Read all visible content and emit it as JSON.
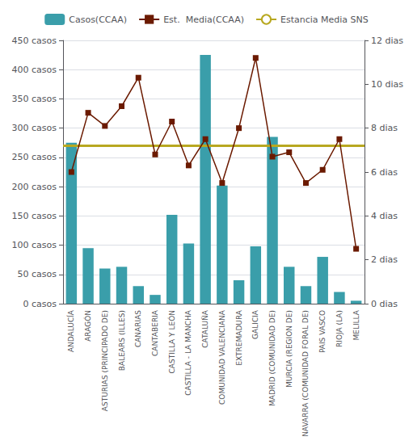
{
  "chart_data": {
    "type": "bar",
    "categories": [
      "ANDALUCÍA",
      "ARAGÓN",
      "ASTURIAS (PRINCIPADO DE)",
      "BALEARS (ILLES)",
      "CANARIAS",
      "CANTABERIA",
      "CASTILLA Y LEÓN",
      "CASTILLA - LA MANCHA",
      "CATALUÑA",
      "COMUNIDAD VALENCIANA",
      "EXTREMADURA",
      "GALICIA",
      "MADRID (COMUNIDAD DE)",
      "MURCIA (REGION DE)",
      "NAVARRA (COMUNIDAD FORAL DE)",
      "PAIS VASCO",
      "RIOJA (LA)",
      "MELILLA"
    ],
    "series": [
      {
        "name": "Casos(CCAA)",
        "type": "bar",
        "color": "#3a9eaa",
        "values": [
          275,
          95,
          60,
          63,
          30,
          15,
          152,
          103,
          425,
          202,
          40,
          98,
          285,
          63,
          30,
          80,
          20,
          5
        ]
      },
      {
        "name": "Est.  Media(CCAA)",
        "type": "line",
        "axis": "y2",
        "color": "#6b1a00",
        "marker": "square",
        "values": [
          6.0,
          8.7,
          8.1,
          9.0,
          10.3,
          6.8,
          8.3,
          6.3,
          7.5,
          5.5,
          8.0,
          11.2,
          6.7,
          6.9,
          5.5,
          6.1,
          7.5,
          2.5
        ]
      },
      {
        "name": "Estancia Media SNS",
        "type": "hline",
        "axis": "y2",
        "color": "#b8a820",
        "value": 7.2
      }
    ],
    "ylim": [
      0,
      450
    ],
    "yticks": [
      {
        "value": 0,
        "label": "0 casos"
      },
      {
        "value": 50,
        "label": "50 casos"
      },
      {
        "value": 100,
        "label": "100 casos"
      },
      {
        "value": 150,
        "label": "150 casos"
      },
      {
        "value": 200,
        "label": "200 casos"
      },
      {
        "value": 250,
        "label": "250 casos"
      },
      {
        "value": 300,
        "label": "300 casos"
      },
      {
        "value": 350,
        "label": "350 casos"
      },
      {
        "value": 400,
        "label": "400 casos"
      },
      {
        "value": 450,
        "label": "450 casos"
      }
    ],
    "y2lim": [
      0,
      12
    ],
    "y2ticks": [
      {
        "value": 0,
        "label": "0 dias"
      },
      {
        "value": 2,
        "label": "2 dias"
      },
      {
        "value": 4,
        "label": "4 dias"
      },
      {
        "value": 6,
        "label": "6 dias"
      },
      {
        "value": 8,
        "label": "8 dias"
      },
      {
        "value": 10,
        "label": "10 dias"
      },
      {
        "value": 12,
        "label": "12 dias"
      }
    ],
    "grid": true,
    "legend": "top"
  }
}
